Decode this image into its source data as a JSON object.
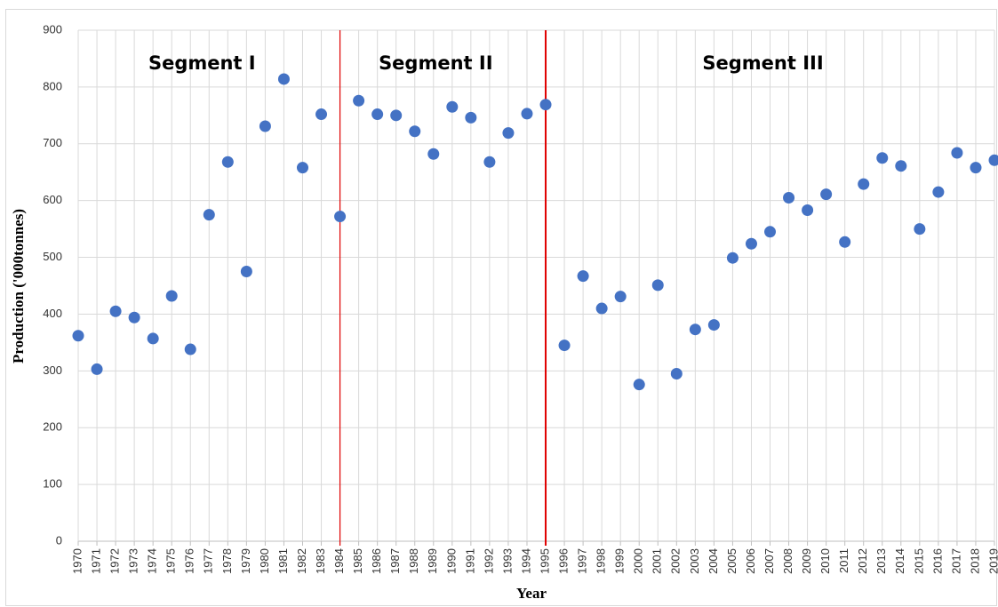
{
  "chart_data": {
    "type": "scatter",
    "x_label": "Year",
    "y_label": "Production ('000tonnes)",
    "x": [
      1970,
      1971,
      1972,
      1973,
      1974,
      1975,
      1976,
      1977,
      1978,
      1979,
      1980,
      1981,
      1982,
      1983,
      1984,
      1985,
      1986,
      1987,
      1988,
      1989,
      1990,
      1991,
      1992,
      1993,
      1994,
      1995,
      1996,
      1997,
      1998,
      1999,
      2000,
      2001,
      2002,
      2003,
      2004,
      2005,
      2006,
      2007,
      2008,
      2009,
      2010,
      2011,
      2012,
      2013,
      2014,
      2015,
      2016,
      2017,
      2018,
      2019
    ],
    "series": [
      {
        "name": "Production",
        "color": "#4472c4",
        "values": [
          362,
          303,
          405,
          394,
          357,
          432,
          338,
          575,
          668,
          475,
          731,
          814,
          658,
          752,
          572,
          776,
          752,
          750,
          722,
          682,
          765,
          746,
          668,
          719,
          753,
          769,
          345,
          467,
          410,
          431,
          276,
          451,
          295,
          373,
          381,
          499,
          524,
          545,
          605,
          583,
          611,
          527,
          629,
          675,
          661,
          550,
          615,
          684,
          658,
          671
        ]
      }
    ],
    "xlim": [
      1970,
      2019
    ],
    "xticks": [
      1970,
      1971,
      1972,
      1973,
      1974,
      1975,
      1976,
      1977,
      1978,
      1979,
      1980,
      1981,
      1982,
      1983,
      1984,
      1985,
      1986,
      1987,
      1988,
      1989,
      1990,
      1991,
      1992,
      1993,
      1994,
      1995,
      1996,
      1997,
      1998,
      1999,
      2000,
      2001,
      2002,
      2003,
      2004,
      2005,
      2006,
      2007,
      2008,
      2009,
      2010,
      2011,
      2012,
      2013,
      2014,
      2015,
      2016,
      2017,
      2018,
      2019
    ],
    "ylim": [
      0,
      900
    ],
    "yticks": [
      0,
      100,
      200,
      300,
      400,
      500,
      600,
      700,
      800,
      900
    ],
    "grid": true,
    "breaks": [
      1984,
      1995
    ],
    "break_color": "#e00000",
    "annotations": [
      "Segment I",
      "Segment II",
      "Segment III"
    ]
  }
}
